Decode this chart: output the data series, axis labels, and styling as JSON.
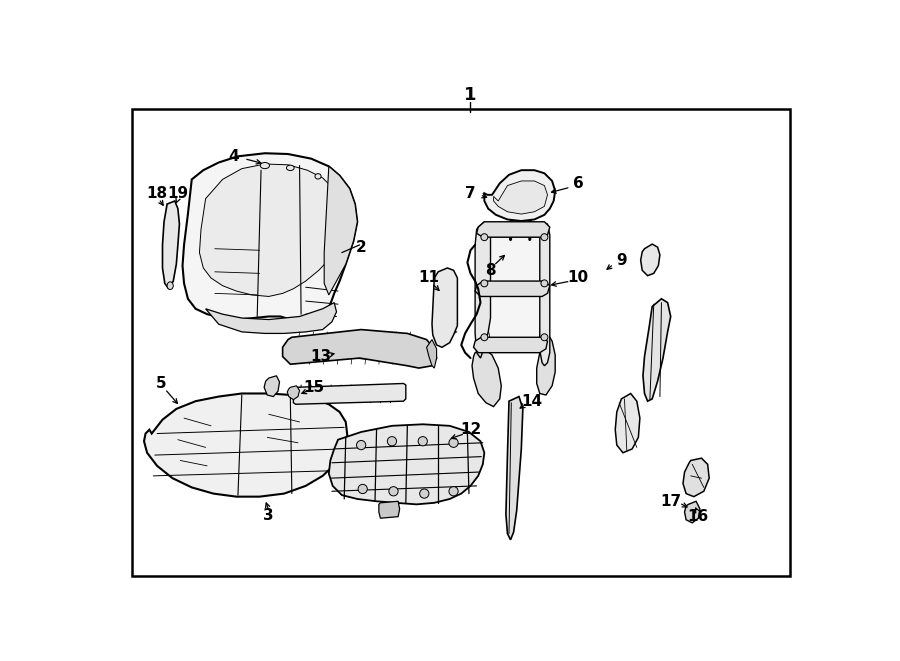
{
  "background_color": "#ffffff",
  "border_color": "#000000",
  "line_color": "#000000",
  "figsize": [
    9.0,
    6.61
  ],
  "dpi": 100,
  "fill_light": "#f0f0f0",
  "fill_mid": "#e0e0e0",
  "fill_dark": "#cccccc"
}
